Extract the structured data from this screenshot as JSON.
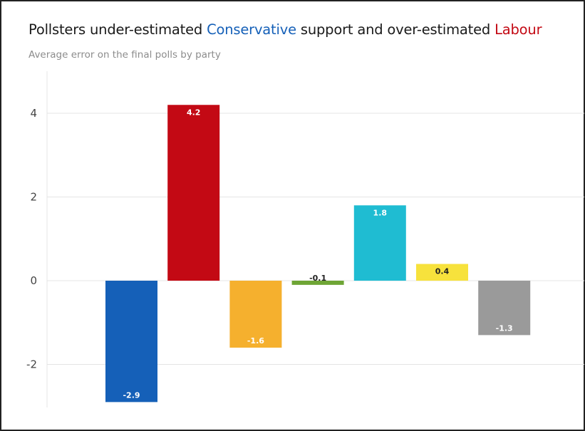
{
  "title": {
    "prefix": "Pollsters under-estimated ",
    "highlight1": "Conservative",
    "middle": " support and over-estimated ",
    "highlight2": "Labour"
  },
  "subtitle": "Average error on the final polls by party",
  "colors": {
    "conservative": "#1560b8",
    "labour": "#c30914",
    "text": "#1a1a1a",
    "subtitle": "#8c8c8c",
    "grid": "#e4e4e4"
  },
  "chart_data": {
    "type": "bar",
    "title": "Pollsters under-estimated Conservative support and over-estimated Labour",
    "subtitle": "Average error on the final polls by party",
    "xlabel": "",
    "ylabel": "",
    "ylim": [
      -3,
      4.8
    ],
    "yticks": [
      -2,
      0,
      2,
      4
    ],
    "ytick_labels": [
      "-2",
      "0",
      "2",
      "4"
    ],
    "grid": true,
    "legend": "none",
    "values": [
      -2.9,
      4.2,
      -1.6,
      -0.1,
      1.8,
      0.4,
      -1.3
    ],
    "labels": [
      "-2.9",
      "4.2",
      "-1.6",
      "-0.1",
      "1.8",
      "0.4",
      "-1.3"
    ],
    "colors": [
      "#1560b8",
      "#c30914",
      "#f5b02e",
      "#6ea535",
      "#1fbcd2",
      "#f7e23c",
      "#9a9a9a"
    ],
    "label_colors": [
      "#ffffff",
      "#ffffff",
      "#ffffff",
      "#222222",
      "#ffffff",
      "#222222",
      "#ffffff"
    ]
  }
}
